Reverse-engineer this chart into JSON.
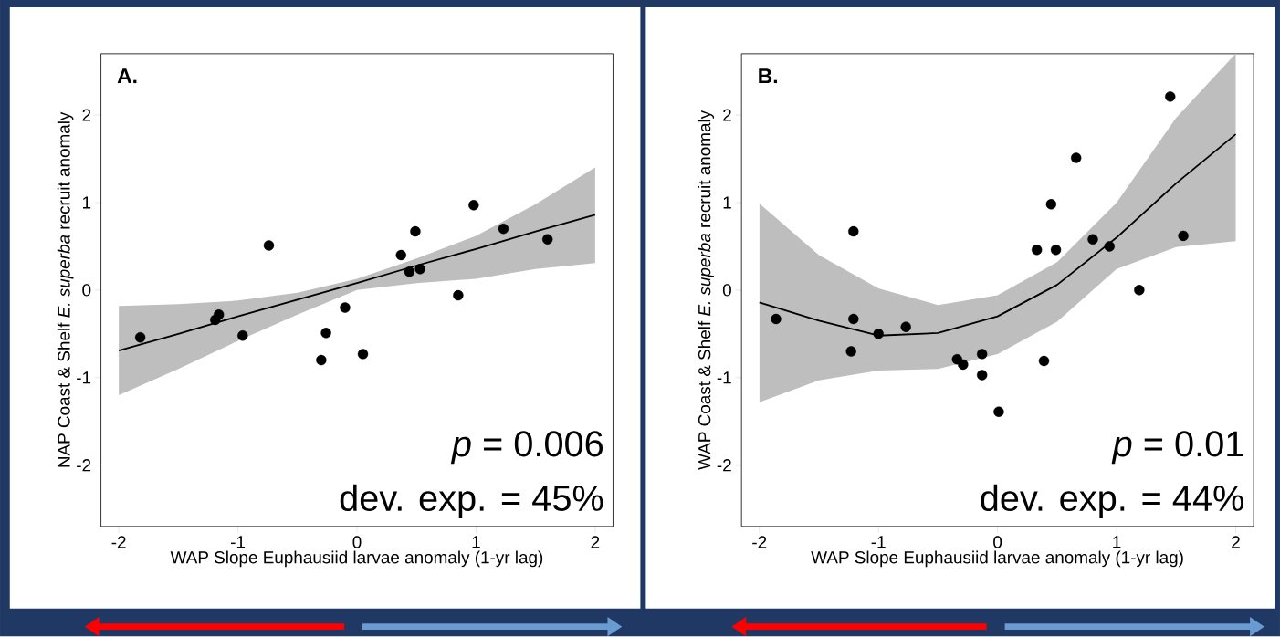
{
  "chart_data": [
    {
      "type": "scatter",
      "title": "A.",
      "xlabel": "WAP Slope Euphausiid larvae anomaly (1-yr lag)",
      "ylabel": "NAP Coast & Shelf *E. superba* recruit anomaly",
      "annotations": [
        "*p* = 0.006",
        "dev. exp. =  45%"
      ],
      "xlim": [
        -2.15,
        2.15
      ],
      "ylim": [
        -2.7,
        2.7
      ],
      "xticks": [
        -2,
        -1,
        0,
        1,
        2
      ],
      "yticks": [
        -2,
        -1,
        0,
        1,
        2
      ],
      "marker": "circle",
      "series": [
        {
          "type": "scatter",
          "color": "#000000",
          "x": [
            -1.82,
            -1.19,
            -1.16,
            -0.96,
            -0.74,
            -0.3,
            -0.26,
            -0.1,
            0.05,
            0.37,
            0.44,
            0.49,
            0.53,
            0.85,
            0.98,
            1.23,
            1.6
          ],
          "values": [
            -0.54,
            -0.34,
            -0.28,
            -0.52,
            0.51,
            -0.8,
            -0.49,
            -0.2,
            -0.73,
            0.4,
            0.21,
            0.67,
            0.24,
            -0.06,
            0.97,
            0.7,
            0.58
          ]
        },
        {
          "type": "line",
          "color": "#000000",
          "marker": "none",
          "x": [
            -2,
            -1.5,
            -1,
            -0.5,
            0,
            0.5,
            1,
            1.5,
            2
          ],
          "values": [
            -0.69,
            -0.5,
            -0.3,
            -0.11,
            0.08,
            0.28,
            0.47,
            0.67,
            0.86
          ],
          "lower": [
            -1.2,
            -0.9,
            -0.58,
            -0.28,
            0.0,
            0.08,
            0.13,
            0.24,
            0.31
          ],
          "upper": [
            -0.18,
            -0.16,
            -0.12,
            -0.03,
            0.13,
            0.36,
            0.62,
            0.98,
            1.4
          ]
        }
      ]
    },
    {
      "type": "scatter",
      "title": "B.",
      "xlabel": "WAP Slope Euphausiid larvae anomaly (1-yr lag)",
      "ylabel": "WAP Coast & Shelf *E. superba* recruit anomaly",
      "annotations": [
        "*p* = 0.01",
        "dev. exp. =  44%"
      ],
      "xlim": [
        -2.15,
        2.15
      ],
      "ylim": [
        -2.7,
        2.7
      ],
      "xticks": [
        -2,
        -1,
        0,
        1,
        2
      ],
      "yticks": [
        -2,
        -1,
        0,
        1,
        2
      ],
      "marker": "circle",
      "series": [
        {
          "type": "scatter",
          "color": "#000000",
          "x": [
            -1.86,
            -1.21,
            -1.21,
            -1.23,
            -1.0,
            -0.77,
            -0.34,
            -0.29,
            -0.13,
            -0.13,
            0.01,
            0.33,
            0.39,
            0.45,
            0.49,
            0.66,
            0.8,
            0.94,
            1.19,
            1.45,
            1.56
          ],
          "values": [
            -0.33,
            0.67,
            -0.33,
            -0.7,
            -0.5,
            -0.42,
            -0.79,
            -0.85,
            -0.73,
            -0.97,
            -1.39,
            0.46,
            -0.81,
            0.98,
            0.46,
            1.51,
            0.58,
            0.5,
            0.0,
            2.21,
            0.62
          ]
        },
        {
          "type": "line",
          "color": "#000000",
          "marker": "none",
          "x": [
            -2,
            -1.5,
            -1,
            -0.5,
            0,
            0.5,
            1,
            1.5,
            2
          ],
          "values": [
            -0.14,
            -0.35,
            -0.52,
            -0.49,
            -0.3,
            0.06,
            0.6,
            1.22,
            1.78
          ],
          "lower": [
            -1.28,
            -1.03,
            -0.92,
            -0.9,
            -0.73,
            -0.36,
            0.24,
            0.49,
            0.56
          ],
          "upper": [
            0.99,
            0.4,
            0.02,
            -0.17,
            -0.06,
            0.32,
            1.0,
            1.97,
            2.7
          ]
        }
      ]
    }
  ]
}
